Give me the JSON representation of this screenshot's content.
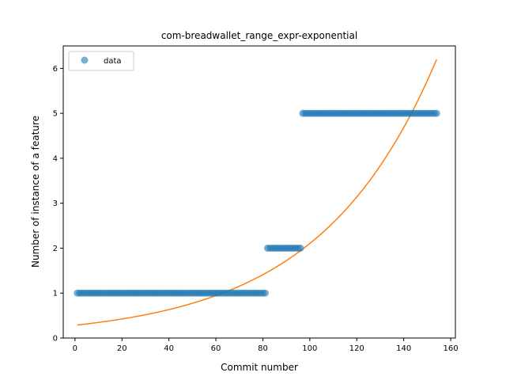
{
  "chart_data": {
    "type": "scatter",
    "title": "com-breadwallet_range_expr-exponential",
    "xlabel": "Commit number",
    "ylabel": "Number of instance of a feature",
    "xlim": [
      -5,
      162
    ],
    "ylim": [
      0,
      6.5
    ],
    "xticks": [
      0,
      20,
      40,
      60,
      80,
      100,
      120,
      140,
      160
    ],
    "yticks": [
      0,
      1,
      2,
      3,
      4,
      5,
      6
    ],
    "legend": {
      "placement": "top-left",
      "entries": [
        "data"
      ]
    },
    "grid": false,
    "series": [
      {
        "name": "data",
        "kind": "scatter",
        "color": "#1f77b4",
        "segments": [
          {
            "x_from": 1,
            "x_to": 81,
            "y": 1
          },
          {
            "x_from": 82,
            "x_to": 96,
            "y": 2
          },
          {
            "x_from": 97,
            "x_to": 154,
            "y": 5
          }
        ]
      },
      {
        "kind": "line",
        "color": "#ff7f0e",
        "model": "exponential",
        "x_start": 1,
        "x_end": 154,
        "y_start": 0.29,
        "y_end": 6.2
      }
    ]
  }
}
